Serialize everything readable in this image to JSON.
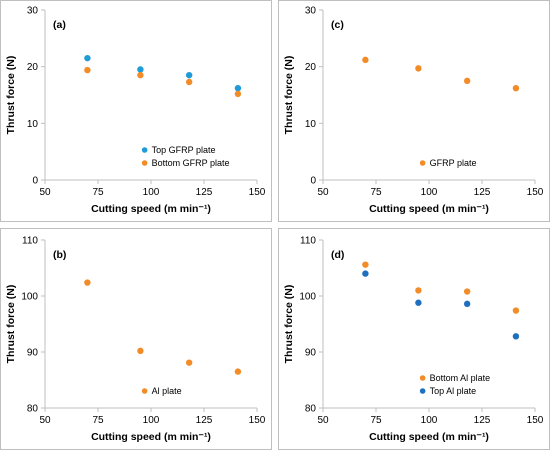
{
  "chart_data": [
    {
      "panel": "(a)",
      "type": "scatter",
      "xlabel": "Cutting speed (m min⁻¹)",
      "ylabel": "Thrust force (N)",
      "xlim": [
        50,
        150
      ],
      "ylim": [
        0,
        30
      ],
      "xticks": [
        50,
        75,
        100,
        125,
        150
      ],
      "yticks": [
        0,
        10,
        20,
        30
      ],
      "grid": false,
      "legend": "lower-right",
      "series": [
        {
          "name": "Top GFRP plate",
          "color": "#1f9bd7",
          "x": [
            70,
            95,
            118,
            141
          ],
          "y": [
            21.5,
            19.5,
            18.5,
            16.2
          ]
        },
        {
          "name": "Bottom GFRP plate",
          "color": "#f28c28",
          "x": [
            70,
            95,
            118,
            141
          ],
          "y": [
            19.4,
            18.5,
            17.3,
            15.2
          ]
        }
      ]
    },
    {
      "panel": "(c)",
      "type": "scatter",
      "xlabel": "Cutting speed (m min⁻¹)",
      "ylabel": "Thrust force (N)",
      "xlim": [
        50,
        150
      ],
      "ylim": [
        0,
        30
      ],
      "xticks": [
        50,
        75,
        100,
        125,
        150
      ],
      "yticks": [
        0,
        10,
        20,
        30
      ],
      "grid": false,
      "legend": "lower-right",
      "series": [
        {
          "name": "GFRP plate",
          "color": "#f28c28",
          "x": [
            70,
            95,
            118,
            141
          ],
          "y": [
            21.2,
            19.7,
            17.5,
            16.2
          ]
        }
      ]
    },
    {
      "panel": "(b)",
      "type": "scatter",
      "xlabel": "Cutting speed (m min⁻¹)",
      "ylabel": "Thrust force (N)",
      "xlim": [
        50,
        150
      ],
      "ylim": [
        80,
        110
      ],
      "xticks": [
        50,
        75,
        100,
        125,
        150
      ],
      "yticks": [
        80,
        90,
        100,
        110
      ],
      "grid": false,
      "legend": "lower-right",
      "series": [
        {
          "name": "Al plate",
          "color": "#f28c28",
          "x": [
            70,
            95,
            118,
            141
          ],
          "y": [
            102.4,
            90.2,
            88.1,
            86.5
          ]
        }
      ]
    },
    {
      "panel": "(d)",
      "type": "scatter",
      "xlabel": "Cutting speed (m min⁻¹)",
      "ylabel": "Thrust force (N)",
      "xlim": [
        50,
        150
      ],
      "ylim": [
        80,
        110
      ],
      "xticks": [
        50,
        75,
        100,
        125,
        150
      ],
      "yticks": [
        80,
        90,
        100,
        110
      ],
      "grid": false,
      "legend": "lower-right",
      "series": [
        {
          "name": "Bottom Al plate",
          "color": "#f28c28",
          "x": [
            70,
            95,
            118,
            141
          ],
          "y": [
            105.6,
            101.0,
            100.8,
            97.4
          ]
        },
        {
          "name": "Top Al plate",
          "color": "#1f6fc0",
          "x": [
            70,
            95,
            118,
            141
          ],
          "y": [
            104.0,
            98.8,
            98.6,
            92.8
          ]
        }
      ]
    }
  ]
}
